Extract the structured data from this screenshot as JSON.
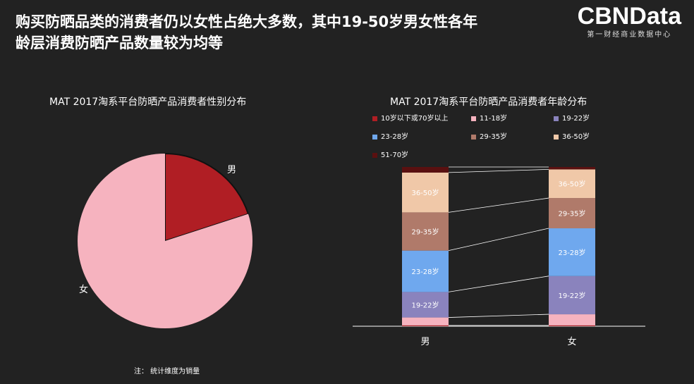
{
  "headline": {
    "line1": "购买防晒品类的消费者仍以女性占绝大多数，其中19-50岁男女性各年",
    "line2": "龄层消费防晒产品数量较为均等"
  },
  "logo": {
    "main": "CBNData",
    "sub": "第一财经商业数据中心"
  },
  "footnote": "注： 统计维度为销量",
  "colors": {
    "background": "#222222",
    "male_slice": "#b01e24",
    "female_slice": "#f6b3bf"
  },
  "chart_data": [
    {
      "type": "pie",
      "title": "MAT 2017淘系平台防晒产品消费者性别分布",
      "slices": [
        {
          "label": "男",
          "value": 20,
          "color": "#b01e24"
        },
        {
          "label": "女",
          "value": 80,
          "color": "#f6b3bf"
        }
      ]
    },
    {
      "type": "bar",
      "stacked": true,
      "percent": true,
      "title": "MAT 2017淘系平台防晒产品消费者年龄分布",
      "categories": [
        "男",
        "女"
      ],
      "series": [
        {
          "name": "10岁以下或70岁以上",
          "color": "#b01e24",
          "values": [
            0.5,
            0.5
          ]
        },
        {
          "name": "11-18岁",
          "color": "#f6b3bf",
          "values": [
            5,
            7
          ]
        },
        {
          "name": "19-22岁",
          "color": "#8a83bd",
          "values": [
            16,
            24
          ]
        },
        {
          "name": "23-28岁",
          "color": "#6fa8ee",
          "values": [
            26,
            30
          ]
        },
        {
          "name": "29-35岁",
          "color": "#b07a6a",
          "values": [
            24,
            19
          ]
        },
        {
          "name": "36-50岁",
          "color": "#f0c8a8",
          "values": [
            25,
            18
          ]
        },
        {
          "name": "51-70岁",
          "color": "#5a1010",
          "values": [
            3.5,
            1.5
          ]
        }
      ],
      "segment_labels": [
        "",
        "",
        "19-22岁",
        "23-28岁",
        "29-35岁",
        "36-50岁",
        ""
      ],
      "legend_position": "top",
      "ylim": [
        0,
        100
      ]
    }
  ]
}
